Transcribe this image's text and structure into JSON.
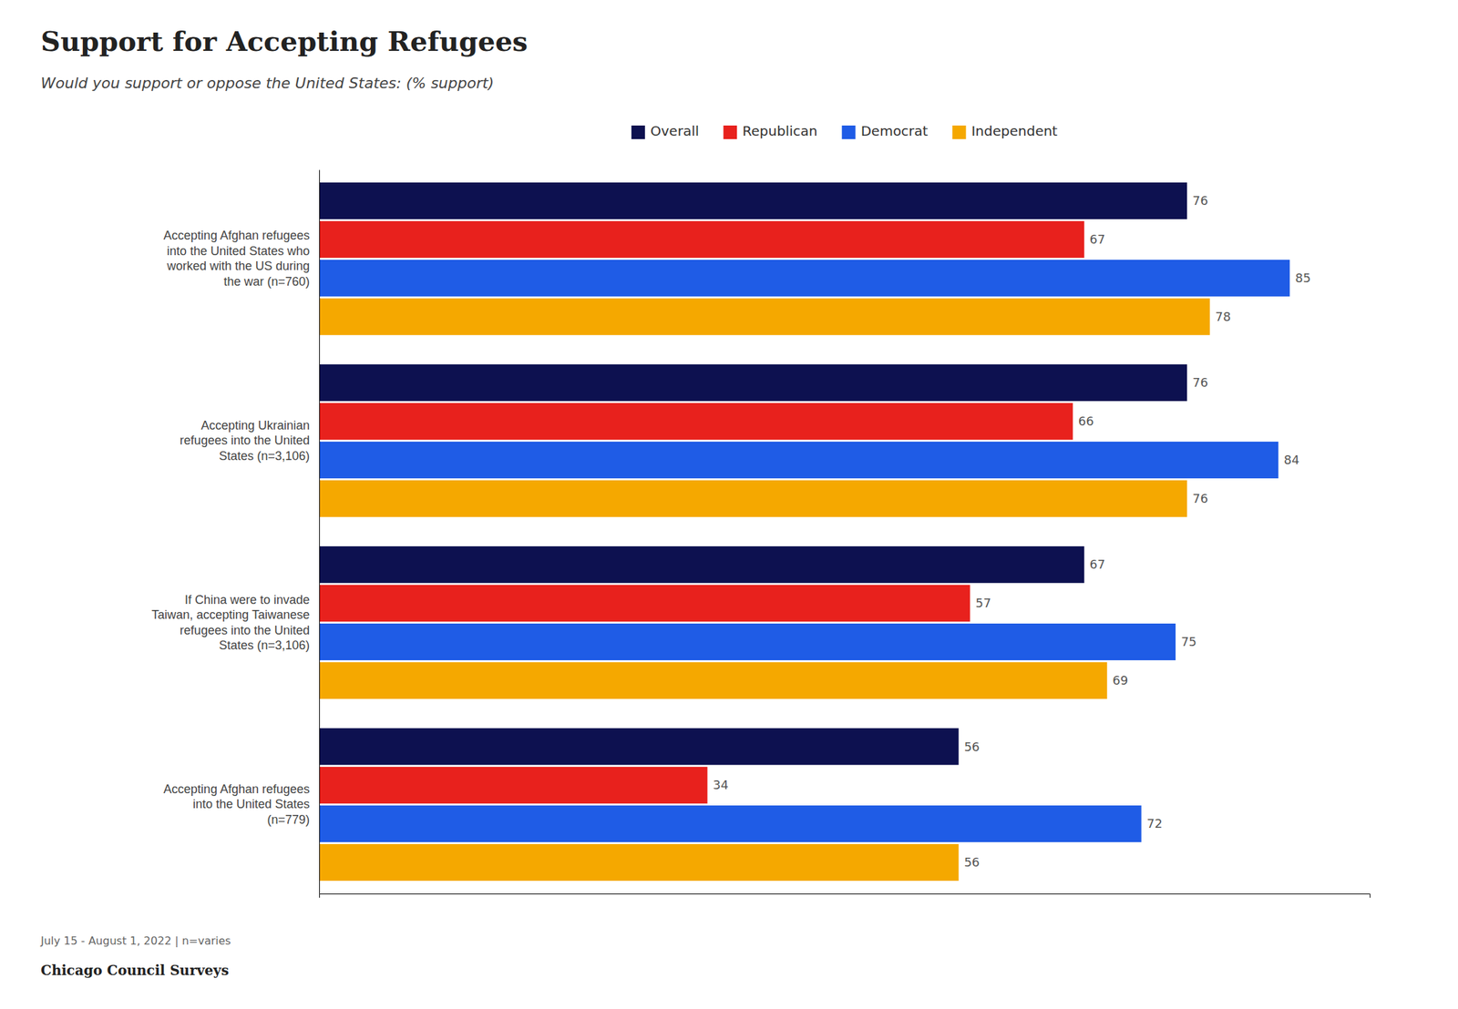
{
  "chart_data": {
    "type": "bar",
    "orientation": "horizontal",
    "title": "Support for Accepting Refugees",
    "subtitle": "Would you support or oppose the United States: (% support)",
    "annotations": [
      "July 15 - August 1, 2022 | n=varies",
      "Chicago Council Surveys"
    ],
    "categories": [
      "Accepting Afghan refugees\ninto the United States who\nworked with the US during\nthe war (n=760)",
      "Accepting Ukrainian\nrefugees into the United\nStates (n=3,106)",
      "If China were to invade\nTaiwan, accepting Taiwanese\nrefugees into the United\nStates (n=3,106)",
      "Accepting Afghan refugees\ninto the United States\n(n=779)"
    ],
    "series": [
      {
        "name": "Overall",
        "color": "#0d1150",
        "values": [
          76,
          76,
          67,
          56
        ]
      },
      {
        "name": "Republican",
        "color": "#e8211d",
        "values": [
          67,
          66,
          57,
          34
        ]
      },
      {
        "name": "Democrat",
        "color": "#1f5ce6",
        "values": [
          85,
          84,
          75,
          72
        ]
      },
      {
        "name": "Independent",
        "color": "#f5a800",
        "values": [
          78,
          76,
          69,
          56
        ]
      }
    ],
    "xlim": [
      0,
      92
    ],
    "xticks": [],
    "tick_labels": "y",
    "grid": false,
    "legend": "top",
    "data_labels": true
  }
}
